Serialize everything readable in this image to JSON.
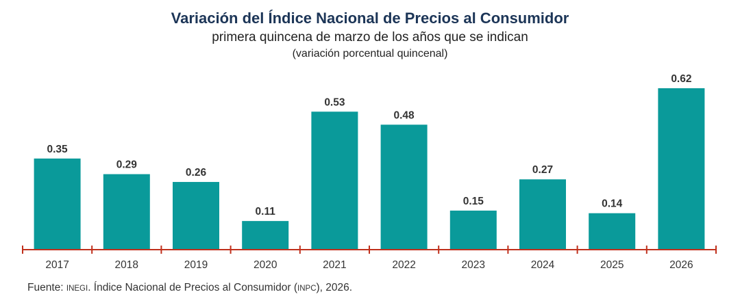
{
  "chart_data": {
    "type": "bar",
    "title": "Variación del Índice Nacional de Precios al Consumidor",
    "subtitle": "primera quincena de marzo de los años que se indican",
    "unit_label": "(variación porcentual quincenal)",
    "categories": [
      "2017",
      "2018",
      "2019",
      "2020",
      "2021",
      "2022",
      "2023",
      "2024",
      "2025",
      "2026"
    ],
    "values": [
      0.35,
      0.29,
      0.26,
      0.11,
      0.53,
      0.48,
      0.15,
      0.27,
      0.14,
      0.62
    ],
    "data_labels": [
      "0.35",
      "0.29",
      "0.26",
      "0.11",
      "0.53",
      "0.48",
      "0.15",
      "0.27",
      "0.14",
      "0.62"
    ],
    "ylim": [
      0,
      0.62
    ],
    "grid": false,
    "bar_color": "#0a9a9a",
    "axis_color": "#c0301c"
  },
  "footer": {
    "prefix": "Fuente: ",
    "org": "INEGI",
    "middle": ". Índice Nacional de Precios al Consumidor (",
    "abbr": "INPC",
    "suffix": "), 2026."
  }
}
